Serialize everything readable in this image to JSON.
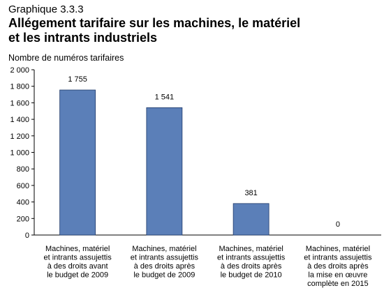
{
  "header": {
    "kicker": "Graphique 3.3.3",
    "title_lines": [
      "Allégement tarifaire sur les machines, le matériel",
      "et les intrants industriels"
    ]
  },
  "chart_data": {
    "type": "bar",
    "ylabel": "Nombre de numéros tarifaires",
    "xlabel": "",
    "ylim": [
      0,
      2000
    ],
    "y_ticks": [
      0,
      200,
      400,
      600,
      800,
      1000,
      1200,
      1400,
      1600,
      1800,
      2000
    ],
    "y_tick_labels": [
      "0",
      "200",
      "400",
      "600",
      "800",
      "1 000",
      "1 200",
      "1 400",
      "1 600",
      "1 800",
      "2 000"
    ],
    "grid": false,
    "categories": [
      [
        "Machines, matériel",
        "et intrants assujettis",
        "à des droits avant",
        "le budget de 2009"
      ],
      [
        "Machines, matériel",
        "et intrants assujettis",
        "à des droits après",
        "le budget de 2009"
      ],
      [
        "Machines, matériel",
        "et intrants assujettis",
        "à des droits après",
        "le budget de 2010"
      ],
      [
        "Machines, matériel",
        "et intrants assujettis",
        "à des droits après",
        "la mise en œuvre",
        "complète en 2015"
      ]
    ],
    "values": [
      1755,
      1541,
      381,
      0
    ],
    "data_labels": [
      "1 755",
      "1 541",
      "381",
      "0"
    ],
    "bar_color": "#5b7fb8",
    "bar_edge_color": "#1f3a6b"
  }
}
